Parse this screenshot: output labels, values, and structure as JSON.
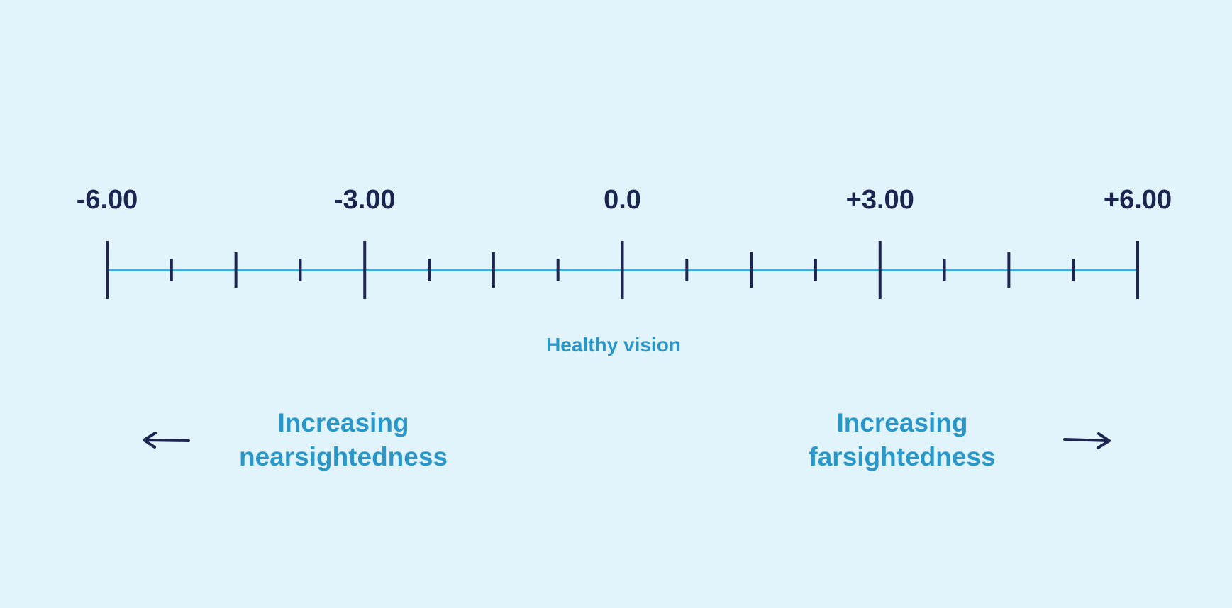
{
  "scale": {
    "min": -6.0,
    "max": 6.0,
    "line_color": "#45acd6",
    "tick_color": "#1b2550",
    "major_ticks": [
      {
        "value": -6.0,
        "label": "-6.00"
      },
      {
        "value": -3.0,
        "label": "-3.00"
      },
      {
        "value": 0.0,
        "label": "0.0"
      },
      {
        "value": 3.0,
        "label": "+3.00"
      },
      {
        "value": 6.0,
        "label": "+6.00"
      }
    ],
    "medium_ticks": [
      -4.5,
      -1.5,
      1.5,
      4.5
    ],
    "minor_ticks": [
      -5.25,
      -3.75,
      -2.25,
      -0.75,
      0.75,
      2.25,
      3.75,
      5.25
    ]
  },
  "labels": {
    "healthy": "Healthy vision",
    "near_line1": "Increasing",
    "near_line2": "nearsightedness",
    "far_line1": "Increasing",
    "far_line2": "farsightedness",
    "caption_color": "#2b96c8"
  },
  "arrows": {
    "left": "arrow-left-icon",
    "right": "arrow-right-icon"
  }
}
